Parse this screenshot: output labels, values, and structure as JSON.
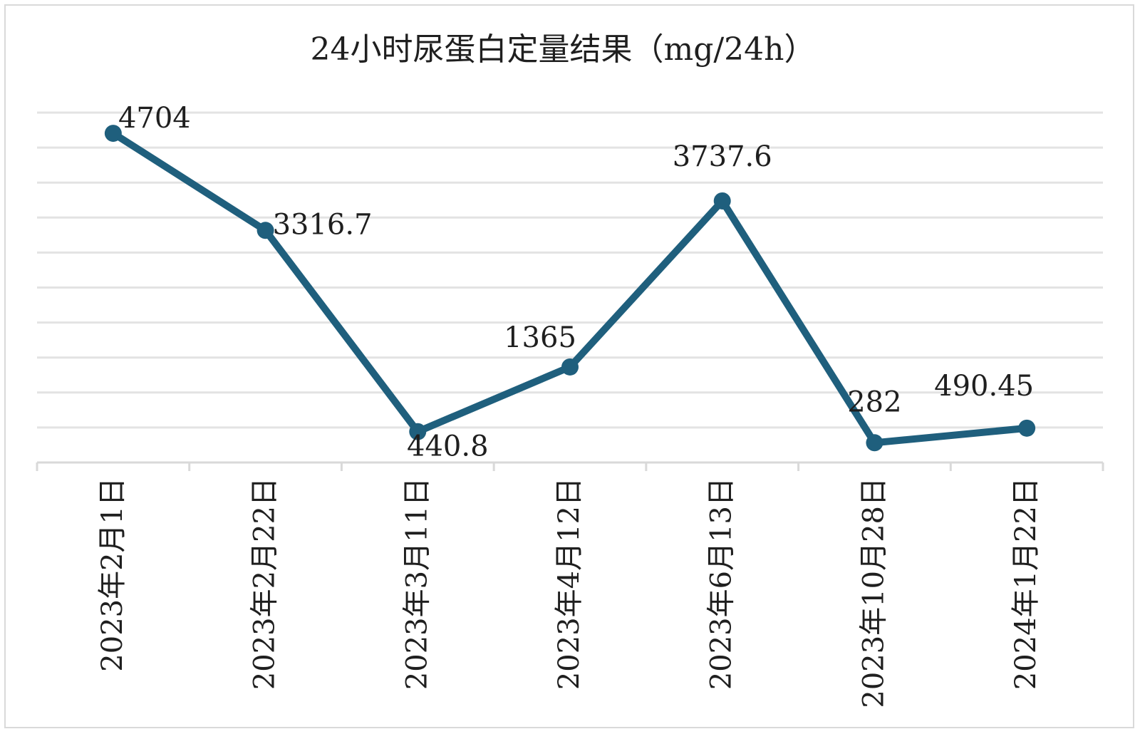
{
  "chart_data": {
    "type": "line",
    "title": "24小时尿蛋白定量结果（mg/24h）",
    "xlabel": "",
    "ylabel": "",
    "categories": [
      "2023年2月1日",
      "2023年2月22日",
      "2023年3月11日",
      "2023年4月12日",
      "2023年6月13日",
      "2023年10月28日",
      "2024年1月22日"
    ],
    "series": [
      {
        "values": [
          4704,
          3316.7,
          440.8,
          1365,
          3737.6,
          282,
          490.45
        ],
        "labels": [
          "4704",
          "3316.7",
          "440.8",
          "1365",
          "3737.6",
          "282",
          "490.45"
        ]
      }
    ],
    "ylim": [
      0,
      5000
    ],
    "grid": true,
    "legend": "none",
    "line_color": "#1f5f7d",
    "grid_color": "#e3e3e3",
    "axis_color": "#d9d9d9"
  }
}
